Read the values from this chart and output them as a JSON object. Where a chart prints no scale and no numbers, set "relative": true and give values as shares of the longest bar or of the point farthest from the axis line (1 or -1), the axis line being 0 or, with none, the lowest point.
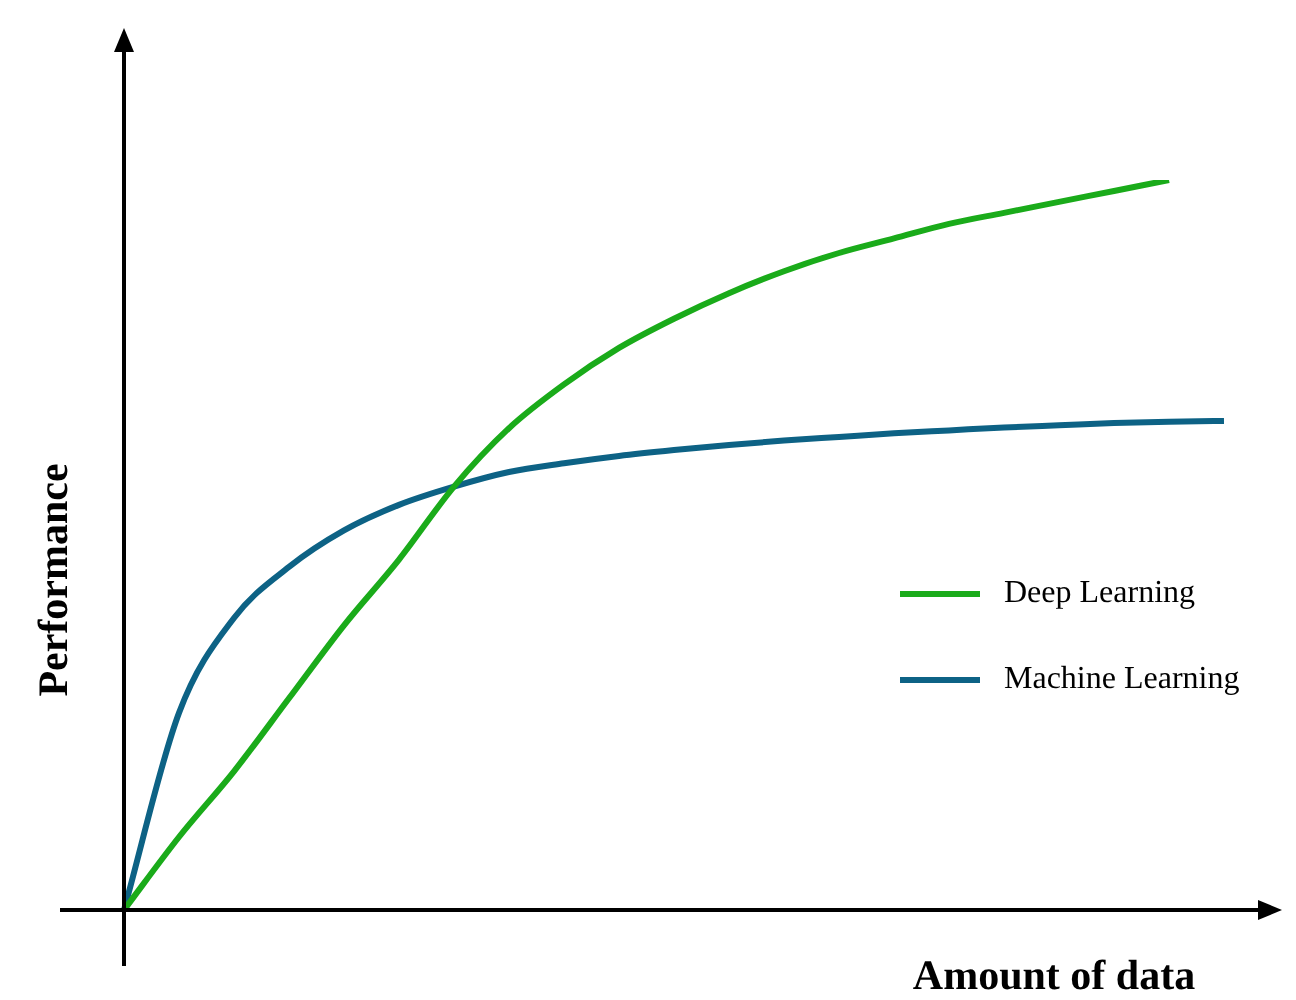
{
  "chart_data": {
    "type": "line",
    "relative": true,
    "xlabel": "Amount of data",
    "ylabel": "Performance",
    "legend": "right",
    "marker": "none",
    "line_style": "solid",
    "categories": [
      null,
      null,
      null,
      null,
      null,
      null,
      null,
      null,
      null,
      null,
      null,
      null,
      null,
      null,
      null,
      null,
      null,
      null,
      null,
      null,
      null
    ],
    "series": [
      {
        "name": "Deep Learning",
        "color": "#1aab1a",
        "values": [
          0,
          0.1,
          0.19,
          0.29,
          0.39,
          0.48,
          0.58,
          0.66,
          0.72,
          0.77,
          0.81,
          0.845,
          0.875,
          0.9,
          0.92,
          0.94,
          0.955,
          0.97,
          0.985,
          1,
          null
        ]
      },
      {
        "name": "Machine Learning",
        "color": "#0d6285",
        "values": [
          0,
          0.27,
          0.4,
          0.47,
          0.52,
          0.555,
          0.58,
          0.6,
          0.612,
          0.622,
          0.63,
          0.637,
          0.643,
          0.648,
          0.653,
          0.657,
          0.661,
          0.664,
          0.667,
          0.669,
          0.67
        ]
      }
    ]
  }
}
